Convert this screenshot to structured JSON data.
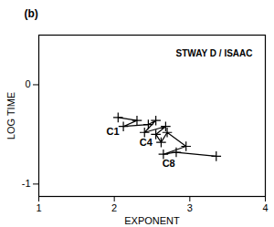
{
  "chart_data": {
    "type": "line",
    "panel_label": "(b)",
    "legend_text": "STWAY D / ISAAC",
    "x_label": "EXPONENT",
    "y_label": "LOG TIME",
    "x": [
      2.05,
      2.3,
      2.12,
      2.45,
      2.55,
      2.4,
      2.68,
      2.55,
      2.62,
      2.7,
      2.95,
      2.65,
      2.82,
      3.35
    ],
    "values": [
      -0.33,
      -0.36,
      -0.42,
      -0.4,
      -0.36,
      -0.48,
      -0.42,
      -0.5,
      -0.58,
      -0.48,
      -0.62,
      -0.7,
      -0.68,
      -0.72
    ],
    "color": "#000000",
    "marker": "plus",
    "annotations": [
      {
        "text": "C1",
        "x": 1.98,
        "y": -0.47
      },
      {
        "text": "C4",
        "x": 2.42,
        "y": -0.58
      },
      {
        "text": "C8",
        "x": 2.72,
        "y": -0.79
      }
    ],
    "xlim": [
      1,
      4
    ],
    "xticks": [
      1,
      2,
      3,
      4
    ],
    "ylim": [
      -1.125,
      0.5
    ],
    "yticks": [
      -1,
      0
    ],
    "grid": false
  }
}
